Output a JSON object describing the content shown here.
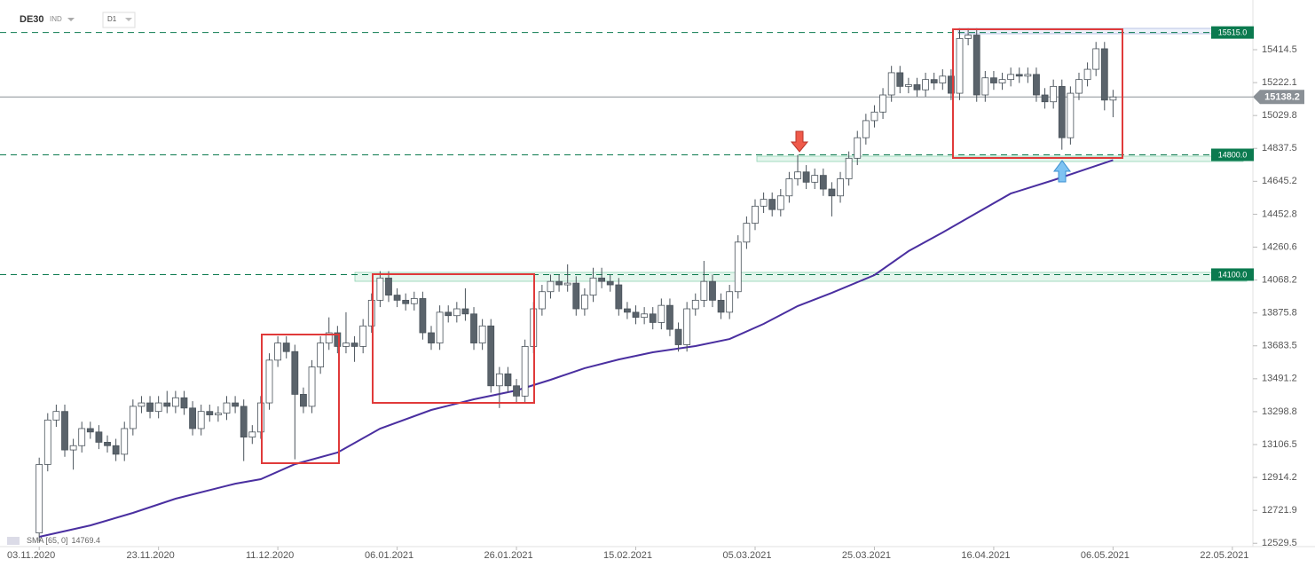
{
  "header": {
    "symbol": "DE30",
    "market": "IND",
    "interval": "D1"
  },
  "chart_data": {
    "type": "candlestick",
    "up_color": "#ffffff",
    "down_color": "#5a636b",
    "outline_color": "#4a535b",
    "open": [
      12590,
      12990,
      13250,
      13300,
      13075,
      13100,
      13200,
      13180,
      13120,
      13100,
      13050,
      13200,
      13330,
      13350,
      13300,
      13350,
      13330,
      13380,
      13320,
      13200,
      13300,
      13280,
      13290,
      13350,
      13330,
      13150,
      13180,
      13350,
      13600,
      13700,
      13650,
      13400,
      13330,
      13560,
      13700,
      13760,
      13680,
      13700,
      13680,
      13800,
      13950,
      14080,
      13980,
      13950,
      13930,
      13960,
      13760,
      13700,
      13880,
      13860,
      13900,
      13870,
      13700,
      13800,
      13450,
      13520,
      13450,
      13390,
      13680,
      13900,
      14000,
      14060,
      14040,
      14050,
      13900,
      13980,
      14080,
      14060,
      14040,
      13900,
      13880,
      13850,
      13870,
      13820,
      13920,
      13780,
      13690,
      13900,
      13950,
      14060,
      13950,
      13880,
      14000,
      14290,
      14400,
      14500,
      14540,
      14480,
      14560,
      14660,
      14700,
      14640,
      14680,
      14600,
      14560,
      14660,
      14780,
      14900,
      15000,
      15050,
      15150,
      15280,
      15200,
      15210,
      15180,
      15240,
      15220,
      15260,
      15160,
      15480,
      15500,
      15150,
      15250,
      15220,
      15240,
      15270,
      15260,
      15270,
      15150,
      15110,
      15200,
      14900,
      15160,
      15240,
      15300,
      15420,
      15120
    ],
    "high": [
      13030,
      13290,
      13340,
      13340,
      13140,
      13240,
      13240,
      13220,
      13160,
      13140,
      13240,
      13370,
      13390,
      13390,
      13390,
      13420,
      13420,
      13420,
      13360,
      13340,
      13340,
      13330,
      13390,
      13390,
      13370,
      13220,
      13390,
      13640,
      13740,
      13740,
      13690,
      13440,
      13600,
      13740,
      13850,
      13800,
      13880,
      13740,
      13840,
      13990,
      14120,
      14120,
      14020,
      13990,
      14000,
      14000,
      13800,
      13920,
      13920,
      13940,
      14020,
      13910,
      13840,
      13840,
      13560,
      13560,
      13490,
      13720,
      13940,
      14040,
      14100,
      14100,
      14160,
      14090,
      14020,
      14140,
      14140,
      14100,
      14080,
      13940,
      13920,
      13910,
      13910,
      13960,
      13960,
      13820,
      13940,
      13990,
      14180,
      14100,
      13990,
      14040,
      14330,
      14440,
      14540,
      14580,
      14580,
      14600,
      14700,
      14800,
      14740,
      14720,
      14720,
      14640,
      14700,
      14820,
      14940,
      15040,
      15090,
      15190,
      15320,
      15320,
      15250,
      15250,
      15280,
      15280,
      15300,
      15300,
      15540,
      15540,
      15540,
      15290,
      15290,
      15280,
      15310,
      15310,
      15310,
      15310,
      15190,
      15240,
      15240,
      15200,
      15280,
      15340,
      15460,
      15460,
      15180
    ],
    "low": [
      12540,
      12950,
      13210,
      13035,
      12960,
      13060,
      13140,
      13080,
      13060,
      13010,
      13010,
      13160,
      13290,
      13260,
      13260,
      13290,
      13290,
      13280,
      13160,
      13160,
      13240,
      13240,
      13250,
      13290,
      13010,
      13110,
      13140,
      13310,
      13560,
      13610,
      13020,
      13290,
      13290,
      13520,
      13660,
      13640,
      13640,
      13590,
      13640,
      13760,
      13910,
      13940,
      13910,
      13890,
      13890,
      13720,
      13660,
      13660,
      13820,
      13820,
      13830,
      13660,
      13660,
      13410,
      13320,
      13410,
      13350,
      13350,
      13640,
      13860,
      13960,
      14000,
      14000,
      13860,
      13860,
      13940,
      14020,
      14000,
      13860,
      13840,
      13810,
      13810,
      13780,
      13780,
      13740,
      13650,
      13650,
      13860,
      13910,
      13910,
      13840,
      13840,
      13960,
      14250,
      14360,
      14460,
      14440,
      14440,
      14520,
      14620,
      14600,
      14600,
      14560,
      14440,
      14520,
      14620,
      14740,
      14860,
      14960,
      15010,
      15110,
      15160,
      15160,
      15140,
      15140,
      15180,
      15180,
      15120,
      15120,
      15440,
      15110,
      15110,
      15180,
      15180,
      15200,
      15220,
      15220,
      15110,
      15070,
      15070,
      14830,
      14860,
      15120,
      15200,
      15260,
      15060,
      15020
    ],
    "close": [
      12990,
      13250,
      13300,
      13075,
      13100,
      13200,
      13180,
      13120,
      13100,
      13050,
      13200,
      13330,
      13350,
      13300,
      13350,
      13330,
      13380,
      13320,
      13200,
      13300,
      13280,
      13290,
      13350,
      13330,
      13150,
      13180,
      13350,
      13600,
      13700,
      13650,
      13400,
      13330,
      13560,
      13700,
      13760,
      13680,
      13700,
      13680,
      13800,
      13950,
      14080,
      13980,
      13950,
      13930,
      13960,
      13760,
      13700,
      13880,
      13860,
      13900,
      13870,
      13700,
      13800,
      13450,
      13520,
      13450,
      13390,
      13680,
      13900,
      14000,
      14060,
      14040,
      14050,
      13900,
      13980,
      14080,
      14060,
      14040,
      13900,
      13880,
      13850,
      13870,
      13820,
      13920,
      13780,
      13690,
      13900,
      13950,
      14060,
      13950,
      13880,
      14000,
      14290,
      14400,
      14500,
      14540,
      14480,
      14560,
      14660,
      14700,
      14640,
      14680,
      14600,
      14560,
      14660,
      14780,
      14900,
      15000,
      15050,
      15150,
      15280,
      15200,
      15210,
      15180,
      15240,
      15220,
      15260,
      15160,
      15480,
      15500,
      15150,
      15250,
      15220,
      15240,
      15270,
      15260,
      15270,
      15150,
      15110,
      15200,
      14900,
      15160,
      15240,
      15300,
      15420,
      15120,
      15138.2
    ],
    "sma": {
      "name": "SMA [65, 0]",
      "color": "#4a2fa0",
      "x": [
        0,
        6,
        11,
        16,
        23,
        26,
        30,
        35,
        40,
        46,
        51,
        56,
        60,
        64,
        68,
        72,
        77,
        81,
        85,
        89,
        93,
        98,
        102,
        106,
        110,
        114,
        119,
        123,
        126
      ],
      "values": [
        12567,
        12634,
        12707,
        12790,
        12878,
        12904,
        12992,
        13060,
        13200,
        13309,
        13371,
        13423,
        13485,
        13553,
        13604,
        13646,
        13682,
        13723,
        13812,
        13916,
        13993,
        14097,
        14237,
        14346,
        14460,
        14574,
        14652,
        14719,
        14769.4
      ]
    },
    "levels": [
      {
        "value": 15515,
        "label": "15515.0"
      },
      {
        "value": 14800,
        "label": "14800.0"
      },
      {
        "value": 14100,
        "label": "14100.0"
      }
    ],
    "level_color": "#0b7a4f",
    "price_color": "#8a9096",
    "xlim": [
      -4.6,
      142.2
    ],
    "ylim": [
      12370,
      15705
    ],
    "yticks": [
      15414.5,
      15222.1,
      15029.8,
      14837.5,
      14645.2,
      14452.8,
      14260.6,
      14068.2,
      13875.8,
      13683.5,
      13491.2,
      13298.8,
      13106.5,
      12914.2,
      12721.9,
      12529.5
    ],
    "xticks": [
      {
        "value": 0,
        "label": "03.11.2020"
      },
      {
        "value": 14,
        "label": "23.11.2020"
      },
      {
        "value": 28,
        "label": "11.12.2020"
      },
      {
        "value": 42,
        "label": "06.01.2021"
      },
      {
        "value": 56,
        "label": "26.01.2021"
      },
      {
        "value": 70,
        "label": "15.02.2021"
      },
      {
        "value": 84,
        "label": "05.03.2021"
      },
      {
        "value": 98,
        "label": "25.03.2021"
      },
      {
        "value": 112,
        "label": "16.04.2021"
      },
      {
        "value": 126,
        "label": "06.05.2021"
      },
      {
        "value": 140,
        "label": "22.05.2021"
      }
    ]
  }
}
